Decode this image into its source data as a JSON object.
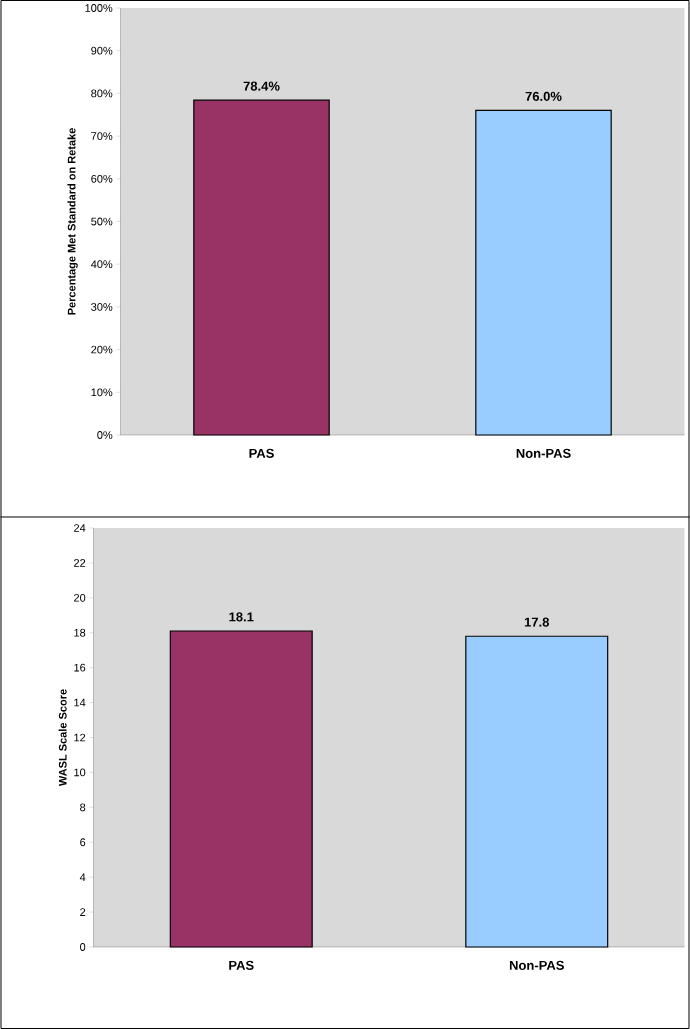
{
  "chart_data": [
    {
      "type": "bar",
      "ylabel": "Percentage Met Standard on Retake",
      "categories": [
        "PAS",
        "Non-PAS"
      ],
      "values": [
        78.4,
        76.0
      ],
      "colors": [
        "#993366",
        "#99ccff"
      ],
      "value_labels": [
        "78.4%",
        "76.0%"
      ],
      "ylim": [
        0,
        100
      ],
      "yticks": [
        {
          "value": 0,
          "label": "0%"
        },
        {
          "value": 10,
          "label": "10%"
        },
        {
          "value": 20,
          "label": "20%"
        },
        {
          "value": 30,
          "label": "30%"
        },
        {
          "value": 40,
          "label": "40%"
        },
        {
          "value": 50,
          "label": "50%"
        },
        {
          "value": 60,
          "label": "60%"
        },
        {
          "value": 70,
          "label": "70%"
        },
        {
          "value": 80,
          "label": "80%"
        },
        {
          "value": 90,
          "label": "90%"
        },
        {
          "value": 100,
          "label": "100%"
        }
      ]
    },
    {
      "type": "bar",
      "ylabel": "WASL Scale Score",
      "categories": [
        "PAS",
        "Non-PAS"
      ],
      "values": [
        18.1,
        17.8
      ],
      "colors": [
        "#993366",
        "#99ccff"
      ],
      "data_labels": true,
      "ylim": [
        0,
        24
      ],
      "yticks": [
        0,
        2,
        4,
        6,
        8,
        10,
        12,
        14,
        16,
        18,
        20,
        22,
        24
      ]
    }
  ]
}
